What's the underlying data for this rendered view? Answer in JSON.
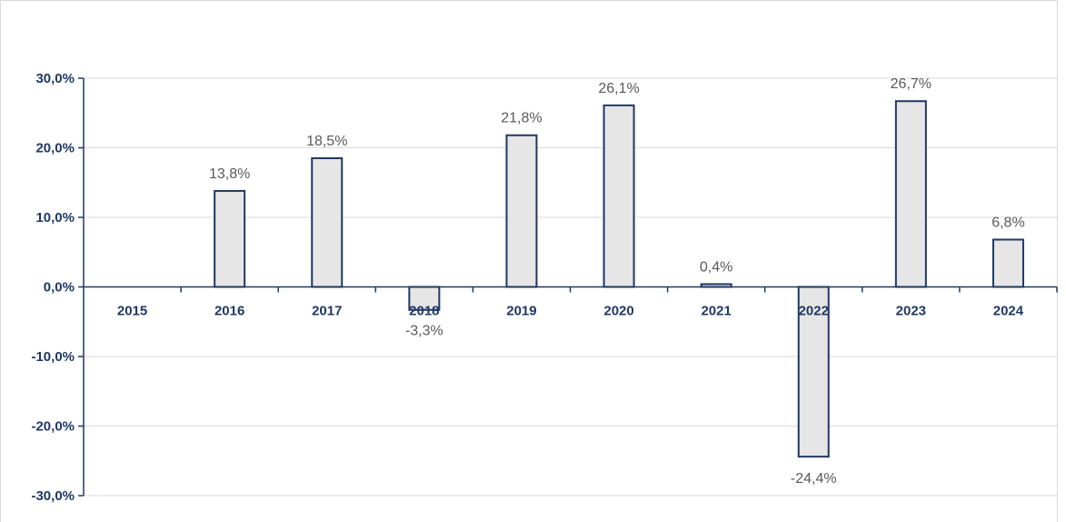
{
  "chart_data": {
    "type": "bar",
    "categories": [
      "2015",
      "2016",
      "2017",
      "2018",
      "2019",
      "2020",
      "2021",
      "2022",
      "2023",
      "2024"
    ],
    "values": [
      null,
      13.8,
      18.5,
      -3.3,
      21.8,
      26.1,
      0.4,
      -24.4,
      26.7,
      6.8
    ],
    "data_labels": [
      "",
      "13,8%",
      "18,5%",
      "-3,3%",
      "21,8%",
      "26,1%",
      "0,4%",
      "-24,4%",
      "26,7%",
      "6,8%"
    ],
    "y_ticks": [
      30,
      20,
      10,
      0,
      -10,
      -20,
      -30
    ],
    "y_tick_labels": [
      "30,0%",
      "20,0%",
      "10,0%",
      "0,0%",
      "-10,0%",
      "-20,0%",
      "-30,0%"
    ],
    "ylim": [
      -30,
      30
    ],
    "grid": true,
    "title": "",
    "xlabel": "",
    "ylabel": "",
    "colors": {
      "bar_fill": "#e7e6e6",
      "bar_stroke": "#1f3864",
      "axis_text": "#1f3864",
      "label_text": "#595959",
      "grid": "#d9d9d9"
    }
  }
}
